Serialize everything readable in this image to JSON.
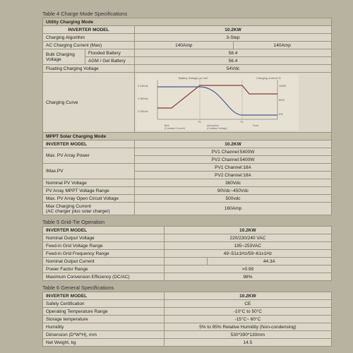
{
  "table4": {
    "title": "Table 4 Charge Mode Specifications",
    "section1": "Utility Charging Mode",
    "hdr_model": "INVERTER MODEL",
    "model_val": "10.2KW",
    "rows": {
      "alg": {
        "k": "Charging Algorithm",
        "v": "3-Step"
      },
      "ac": {
        "k": "AC Charging Current (Max)",
        "v1": "140Amp",
        "v2": "140Amp"
      },
      "bulk": {
        "k": "Bulk Charging",
        "sub1": "Flooded Battery",
        "sub2": "AGM / Gel Battery",
        "lbl": "Voltage",
        "v1": "58.4",
        "v2": "56.4"
      },
      "float": {
        "k": "Floating Charging Voltage",
        "v": "54Vdc"
      },
      "curve": {
        "k": "Charging Curve"
      }
    },
    "section2": "MPPT Solar Charging Mode",
    "rows2": {
      "maxp": {
        "k": "Max. PV Array Power",
        "v1": "PV1 Channel:5400W",
        "v2": "PV2 Channel:5400W"
      },
      "imax": {
        "k": "IMax.PV",
        "v1": "PV1 Channel:18A",
        "v2": "PV2 Channel:18A"
      },
      "nom": {
        "k": "Nominal PV Voltage",
        "v": "360Vdc"
      },
      "mppt": {
        "k": "PV Array MPPT Voltage Range",
        "v": "90Vdc~450Vdc"
      },
      "voc": {
        "k": "Max. PV Array Open Circuit Voltage",
        "v": "500vdc"
      },
      "maxc": {
        "k": "Max Charging Current",
        "sub": "(AC charger plus solar charger)",
        "v": "160Amp"
      }
    },
    "chart": {
      "bg": "#e6e1d3",
      "axis": "#555",
      "line_v": "#8a3a3a",
      "line_i": "#4a5a8a",
      "note_top": "Battery Voltage per cell",
      "note_r": "Charging current %",
      "t0": "T0",
      "t1": "T1",
      "zones": [
        "Bulk\n(Constant Current)",
        "Absorption\n(Constant Voltage)",
        "Float"
      ],
      "ylabels_r": [
        "100%",
        "50%",
        "0%"
      ],
      "ylabels_l": [
        "2.43Vdc",
        "2.35Vdc",
        "2.25Vdc"
      ]
    }
  },
  "table5": {
    "title": "Table 5 Grid-Tie Operation",
    "hdr_model": "INVERTER MODEL",
    "model_val": "10.2KW",
    "rows": [
      {
        "k": "Nominal Output Voltage",
        "v": "220/230/240 VAC"
      },
      {
        "k": "Feed-in Grid Voltage Range",
        "v": "195~253VAC"
      },
      {
        "k": "Feed-in Grid Frequency Range",
        "v": "49~51±1Hz/59~61±1Hz"
      },
      {
        "k": "Nominal Output Current",
        "v": "44.3A"
      },
      {
        "k": "Power Factor Range",
        "v": ">0.99"
      },
      {
        "k": "Maximum Conversion Efficiency (DC/AC)",
        "v": "98%"
      }
    ]
  },
  "table6": {
    "title": "Table 6 General Specifications",
    "hdr_model": "INVERTER MODEL",
    "model_val": "10.2KW",
    "rows": [
      {
        "k": "Safety Certification",
        "v": "CE"
      },
      {
        "k": "Operating Temperature Range",
        "v": "-10°C to 50°C"
      },
      {
        "k": "Storage temperature",
        "v": "-15°C~ 60°C"
      },
      {
        "k": "Humidity",
        "v": "5% to 95% Relative Humidity (Non-condensing)"
      },
      {
        "k": "Dimension (D*W*H), mm",
        "v": "530*390*130mm"
      },
      {
        "k": "Net Weight, kg",
        "v": "14.5"
      }
    ]
  }
}
